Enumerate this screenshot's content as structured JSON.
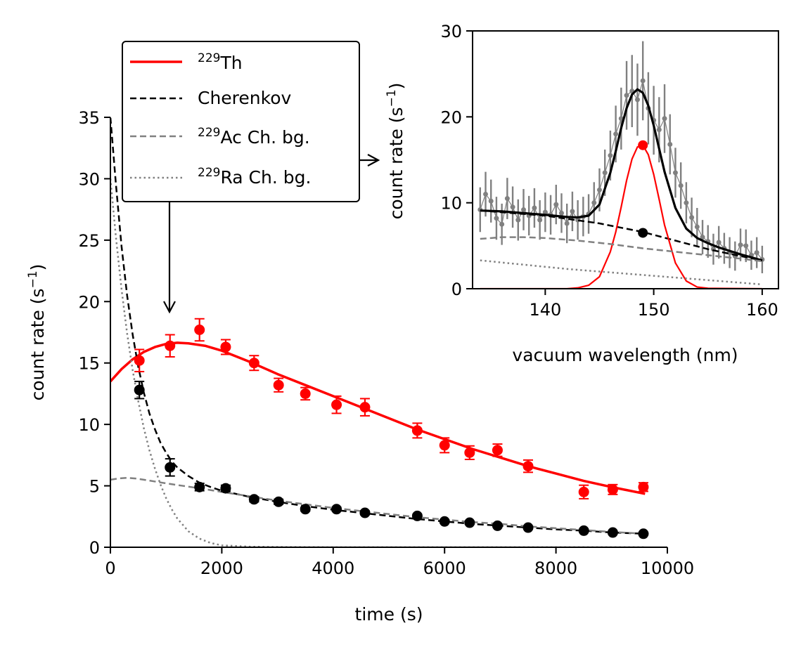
{
  "chart_data": [
    {
      "type": "scatter",
      "title": "",
      "xlabel": "time (s)",
      "ylabel_prefix": "count rate (s",
      "ylabel_sup": "−1",
      "ylabel_suffix": ")",
      "xlim": [
        0,
        10000
      ],
      "ylim": [
        0,
        35
      ],
      "xticks": [
        0,
        2000,
        4000,
        6000,
        8000,
        10000
      ],
      "xtick_labels": [
        "0",
        "2000",
        "4000",
        "6000",
        "8000",
        "10000"
      ],
      "yticks": [
        0,
        5,
        10,
        15,
        20,
        25,
        30,
        35
      ],
      "ytick_labels": [
        "0",
        "5",
        "10",
        "15",
        "20",
        "25",
        "30",
        "35"
      ],
      "legend": {
        "placement": "top-left (above axes)",
        "entries": [
          {
            "sup": "229",
            "text": "Th",
            "color": "#ff0000",
            "style": "solid"
          },
          {
            "sup": "",
            "text": "Cherenkov",
            "color": "#000000",
            "style": "dashed"
          },
          {
            "sup": "229",
            "text": "Ac Ch. bg.",
            "color": "#808080",
            "style": "dashed"
          },
          {
            "sup": "229",
            "text": "Ra Ch. bg.",
            "color": "#808080",
            "style": "dotted"
          }
        ]
      },
      "series": [
        {
          "name": "229Th data",
          "color": "#ff0000",
          "x": [
            520,
            1070,
            1600,
            2070,
            2580,
            3020,
            3500,
            4060,
            4570,
            5510,
            6000,
            6450,
            6950,
            7500,
            8500,
            9020,
            9570
          ],
          "y": [
            15.2,
            16.4,
            17.7,
            16.3,
            15.0,
            13.2,
            12.5,
            11.6,
            11.4,
            9.5,
            8.3,
            7.7,
            7.9,
            6.6,
            4.5,
            4.7,
            4.9
          ],
          "err": [
            0.9,
            0.9,
            0.9,
            0.6,
            0.6,
            0.55,
            0.5,
            0.7,
            0.7,
            0.6,
            0.6,
            0.55,
            0.5,
            0.5,
            0.55,
            0.4,
            0.35
          ]
        },
        {
          "name": "Cherenkov data",
          "color": "#000000",
          "x": [
            520,
            1070,
            1600,
            2070,
            2580,
            3020,
            3500,
            4060,
            4570,
            5510,
            6000,
            6450,
            6950,
            7500,
            8500,
            9020,
            9570
          ],
          "y": [
            12.8,
            6.5,
            4.9,
            4.8,
            3.9,
            3.7,
            3.1,
            3.1,
            2.8,
            2.55,
            2.1,
            2.0,
            1.75,
            1.6,
            1.35,
            1.2,
            1.1
          ],
          "err": [
            0.7,
            0.7,
            0.3,
            0.25,
            0.2,
            0.2,
            0.15,
            0.15,
            0.15,
            0.12,
            0.12,
            0.12,
            0.1,
            0.1,
            0.1,
            0.1,
            0.1
          ]
        },
        {
          "name": "229Th fit",
          "color": "#ff0000",
          "style": "solid",
          "x": [
            0,
            200,
            400,
            600,
            800,
            1000,
            1200,
            1400,
            1700,
            2000,
            2500,
            3000,
            3500,
            4000,
            4500,
            5000,
            5500,
            6000,
            6500,
            7000,
            7500,
            8000,
            8500,
            9000,
            9600
          ],
          "y": [
            13.5,
            14.5,
            15.3,
            15.9,
            16.3,
            16.55,
            16.65,
            16.6,
            16.4,
            16.0,
            15.1,
            14.1,
            13.2,
            12.3,
            11.4,
            10.5,
            9.6,
            8.8,
            8.0,
            7.3,
            6.6,
            6.0,
            5.4,
            4.9,
            4.35
          ]
        },
        {
          "name": "Cherenkov fit",
          "color": "#000000",
          "style": "dashed",
          "x": [
            0,
            100,
            200,
            300,
            400,
            500,
            600,
            700,
            800,
            900,
            1000,
            1100,
            1200,
            1400,
            1600,
            1800,
            2000,
            2500,
            3000,
            3500,
            4000,
            4500,
            5000,
            5500,
            6000,
            6500,
            7000,
            7500,
            8000,
            8500,
            9000,
            9600
          ],
          "y": [
            35,
            29.5,
            24.5,
            20.5,
            17.3,
            14.7,
            12.6,
            10.9,
            9.6,
            8.5,
            7.7,
            7.0,
            6.5,
            5.8,
            5.25,
            4.9,
            4.6,
            4.1,
            3.7,
            3.35,
            3.05,
            2.8,
            2.55,
            2.3,
            2.1,
            1.9,
            1.75,
            1.6,
            1.45,
            1.35,
            1.2,
            1.1
          ]
        },
        {
          "name": "229Ac Ch. bg.",
          "color": "#808080",
          "style": "dashed",
          "x": [
            0,
            150,
            300,
            450,
            600,
            800,
            1000,
            1300,
            1600,
            2000,
            2500,
            3000,
            3500,
            4000,
            4500,
            5000,
            5500,
            6000,
            6500,
            7000,
            7500,
            8000,
            8500,
            9000,
            9600
          ],
          "y": [
            5.5,
            5.6,
            5.65,
            5.6,
            5.5,
            5.35,
            5.2,
            5.0,
            4.8,
            4.5,
            4.15,
            3.8,
            3.5,
            3.2,
            2.95,
            2.7,
            2.45,
            2.25,
            2.05,
            1.9,
            1.7,
            1.55,
            1.4,
            1.25,
            1.1
          ]
        },
        {
          "name": "229Ra Ch. bg.",
          "color": "#808080",
          "style": "dotted",
          "x": [
            0,
            100,
            200,
            300,
            400,
            500,
            600,
            700,
            800,
            900,
            1000,
            1100,
            1200,
            1400,
            1600,
            1800,
            2000,
            2500,
            3000,
            4000,
            5000,
            6000,
            7000,
            8000,
            9000,
            9600
          ],
          "y": [
            30,
            25.2,
            21.0,
            17.4,
            14.4,
            11.9,
            9.7,
            7.9,
            6.4,
            5.1,
            4.0,
            3.1,
            2.35,
            1.3,
            0.7,
            0.35,
            0.15,
            0.05,
            0.02,
            0,
            0,
            0,
            0,
            0,
            0,
            0
          ]
        }
      ],
      "annotations": [
        {
          "type": "arrow",
          "from": [
            1070,
            28.5
          ],
          "to": [
            1070,
            19
          ],
          "note": "down arrow from legend"
        },
        {
          "type": "arrow",
          "target": "inset",
          "note": "right arrow to inset panel"
        }
      ]
    },
    {
      "type": "scatter",
      "title": "",
      "xlabel": "vacuum wavelength (nm)",
      "ylabel_prefix": "count rate (s",
      "ylabel_sup": "−1",
      "ylabel_suffix": ")",
      "xlim": [
        133.3,
        161.5
      ],
      "ylim": [
        0,
        30
      ],
      "xticks": [
        140,
        150,
        160
      ],
      "xtick_labels": [
        "140",
        "150",
        "160"
      ],
      "yticks": [
        0,
        10,
        20,
        30
      ],
      "ytick_labels": [
        "0",
        "10",
        "20",
        "30"
      ],
      "series": [
        {
          "name": "spectrum data",
          "color": "#808080",
          "x": [
            134.0,
            134.5,
            135.0,
            135.5,
            136.0,
            136.5,
            137.0,
            137.5,
            138.0,
            138.5,
            139.0,
            139.5,
            140.0,
            140.5,
            141.0,
            141.5,
            142.0,
            142.5,
            143.0,
            143.5,
            144.0,
            144.5,
            145.0,
            145.5,
            146.0,
            146.5,
            147.0,
            147.5,
            148.0,
            148.5,
            149.0,
            149.5,
            150.0,
            150.5,
            151.0,
            151.5,
            152.0,
            152.5,
            153.0,
            153.5,
            154.0,
            154.5,
            155.0,
            155.5,
            156.0,
            156.5,
            157.0,
            157.5,
            158.0,
            158.5,
            159.0,
            159.5,
            160.0
          ],
          "y": [
            9.2,
            11.0,
            10.2,
            8.2,
            7.5,
            10.5,
            9.5,
            8.0,
            9.2,
            8.5,
            9.4,
            8.0,
            8.9,
            8.6,
            9.8,
            8.8,
            7.6,
            9.0,
            8.0,
            8.4,
            8.7,
            10.0,
            11.5,
            13.5,
            15.5,
            18.0,
            19.8,
            22.5,
            23.0,
            22.0,
            24.2,
            21.0,
            19.6,
            18.5,
            19.8,
            16.8,
            13.5,
            12.0,
            10.0,
            8.3,
            7.2,
            6.0,
            5.5,
            4.6,
            5.4,
            4.7,
            4.2,
            3.8,
            5.1,
            5.0,
            3.9,
            4.2,
            3.4
          ],
          "err": [
            2.6,
            2.6,
            2.5,
            2.5,
            2.4,
            2.4,
            2.4,
            2.4,
            2.4,
            2.3,
            2.3,
            2.3,
            2.3,
            2.3,
            2.3,
            2.3,
            2.3,
            2.3,
            2.3,
            2.3,
            2.3,
            2.4,
            2.5,
            2.7,
            2.9,
            3.3,
            3.6,
            4.0,
            4.2,
            4.2,
            4.6,
            4.2,
            4.0,
            3.8,
            4.0,
            3.5,
            2.9,
            2.7,
            2.4,
            2.3,
            2.2,
            2.0,
            1.9,
            1.8,
            1.9,
            1.8,
            1.8,
            1.7,
            1.9,
            1.9,
            1.7,
            1.8,
            1.6
          ]
        },
        {
          "name": "total fit",
          "color": "#000000",
          "style": "solid",
          "x": [
            134,
            136,
            138,
            140,
            142,
            143,
            144,
            145,
            146,
            146.5,
            147,
            147.5,
            148,
            148.5,
            149,
            149.5,
            150,
            150.5,
            151,
            152,
            153,
            154,
            155,
            156,
            158,
            160
          ],
          "y": [
            9.1,
            9.0,
            8.8,
            8.6,
            8.35,
            8.3,
            8.5,
            9.8,
            13.5,
            16.0,
            18.7,
            21.0,
            22.6,
            23.2,
            22.8,
            21.3,
            19.0,
            16.3,
            13.6,
            9.4,
            7.0,
            5.9,
            5.3,
            4.8,
            4.0,
            3.3
          ]
        },
        {
          "name": "background fit",
          "color": "#000000",
          "style": "dashed",
          "x": [
            134,
            140,
            145,
            149,
            152,
            155,
            158,
            160
          ],
          "y": [
            9.1,
            8.5,
            7.6,
            6.6,
            5.6,
            4.6,
            3.8,
            3.3
          ]
        },
        {
          "name": "229Th peak",
          "color": "#ff0000",
          "style": "solid",
          "x": [
            134,
            142,
            143,
            144,
            145,
            146,
            146.5,
            147,
            147.5,
            148,
            148.5,
            149,
            149.5,
            150,
            150.5,
            151,
            152,
            153,
            154,
            155,
            160
          ],
          "y": [
            0,
            0,
            0.1,
            0.4,
            1.4,
            4.3,
            6.6,
            9.5,
            12.6,
            15.1,
            16.5,
            16.7,
            15.6,
            13.3,
            10.4,
            7.4,
            3.0,
            0.9,
            0.2,
            0.05,
            0
          ]
        },
        {
          "name": "229Ac Ch. bg.",
          "color": "#808080",
          "style": "dashed",
          "x": [
            134,
            135,
            136,
            138,
            140,
            143,
            146,
            149,
            152,
            155,
            158,
            160
          ],
          "y": [
            5.8,
            5.9,
            6.0,
            6.0,
            5.9,
            5.6,
            5.2,
            4.7,
            4.3,
            3.9,
            3.5,
            3.2
          ]
        },
        {
          "name": "229Ra Ch. bg.",
          "color": "#808080",
          "style": "dotted",
          "x": [
            134,
            138,
            142,
            146,
            150,
            154,
            158,
            160
          ],
          "y": [
            3.3,
            2.8,
            2.3,
            1.9,
            1.5,
            1.1,
            0.7,
            0.5
          ]
        },
        {
          "name": "markers",
          "points": [
            {
              "x": 149,
              "y": 16.7,
              "color": "#ff0000"
            },
            {
              "x": 149,
              "y": 6.5,
              "color": "#000000"
            }
          ]
        }
      ]
    }
  ]
}
